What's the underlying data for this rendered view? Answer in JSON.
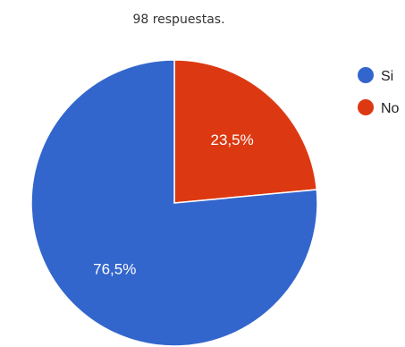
{
  "subtitle": "98 respuestas.",
  "chart_data": {
    "type": "pie",
    "categories": [
      "Si",
      "No"
    ],
    "values": [
      76.5,
      23.5
    ],
    "data_labels": [
      "76,5%",
      "23,5%"
    ],
    "colors": [
      "#3366cc",
      "#dc3912"
    ],
    "legend_position": "right",
    "start_angle_deg": 0,
    "direction": "clockwise"
  }
}
